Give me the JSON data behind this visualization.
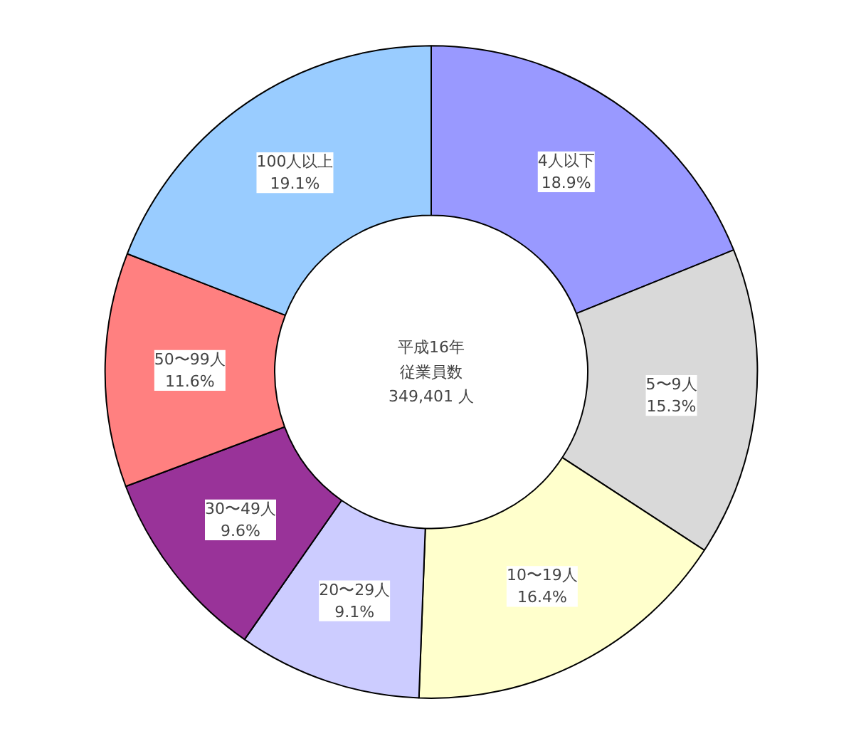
{
  "chart_data": {
    "type": "donut",
    "categories": [
      "4人以下",
      "5〜9人",
      "10〜19人",
      "20〜29人",
      "30〜49人",
      "50〜99人",
      "100人以上"
    ],
    "values": [
      18.9,
      15.3,
      16.4,
      9.1,
      9.6,
      11.6,
      19.1
    ],
    "colors": [
      "#9999ff",
      "#d9d9d9",
      "#ffffcc",
      "#ccccff",
      "#993399",
      "#ff8080",
      "#99ccff"
    ],
    "value_labels": [
      "18.9%",
      "15.3%",
      "16.4%",
      "9.1%",
      "9.6%",
      "11.6%",
      "19.1%"
    ],
    "annotations": [
      "平成16年",
      "従業員数",
      "349,401 人"
    ]
  }
}
